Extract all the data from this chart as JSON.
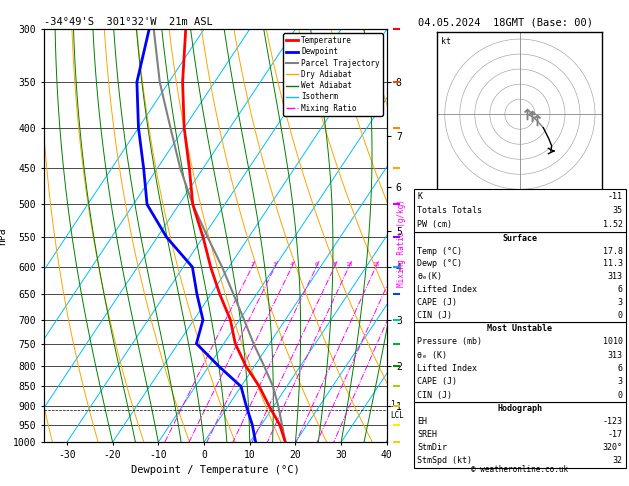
{
  "title_left": "-34°49'S  301°32'W  21m ASL",
  "title_right": "04.05.2024  18GMT (Base: 00)",
  "xlabel": "Dewpoint / Temperature (°C)",
  "ylabel_left": "hPa",
  "pressure_levels": [
    300,
    350,
    400,
    450,
    500,
    550,
    600,
    650,
    700,
    750,
    800,
    850,
    900,
    950,
    1000
  ],
  "temp_ticks": [
    -30,
    -20,
    -10,
    0,
    10,
    20,
    30,
    40
  ],
  "isotherm_color": "#00bfff",
  "dry_adiabat_color": "#ffa500",
  "wet_adiabat_color": "#008000",
  "mixing_ratio_color": "#ff00ff",
  "mixing_ratio_values": [
    2,
    3,
    4,
    6,
    8,
    10,
    15,
    20,
    25
  ],
  "temperature_profile_p": [
    1000,
    950,
    900,
    850,
    800,
    750,
    700,
    650,
    600,
    550,
    500,
    450,
    400,
    350,
    300
  ],
  "temperature_profile_t": [
    17.8,
    14.0,
    9.0,
    4.0,
    -2.0,
    -7.5,
    -12.0,
    -18.0,
    -24.0,
    -30.0,
    -37.0,
    -43.0,
    -50.0,
    -57.0,
    -64.0
  ],
  "dewpoint_profile_p": [
    1000,
    950,
    900,
    850,
    800,
    750,
    700,
    650,
    600,
    550,
    500,
    450,
    400,
    350,
    300
  ],
  "dewpoint_profile_t": [
    11.3,
    8.0,
    4.0,
    0.0,
    -8.0,
    -16.0,
    -18.0,
    -23.0,
    -28.0,
    -38.0,
    -47.0,
    -53.0,
    -60.0,
    -67.0,
    -72.0
  ],
  "parcel_profile_p": [
    1000,
    950,
    900,
    850,
    800,
    750,
    700,
    650,
    600,
    550,
    500,
    450,
    400,
    350,
    300
  ],
  "parcel_profile_t": [
    17.8,
    14.5,
    11.0,
    7.0,
    2.0,
    -3.5,
    -9.0,
    -15.0,
    -21.5,
    -29.0,
    -37.0,
    -45.0,
    -53.0,
    -62.0,
    -71.0
  ],
  "lcl_pressure": 910,
  "temp_color": "#ff0000",
  "dewpoint_color": "#0000ff",
  "parcel_color": "#808080",
  "km_labels": [
    1,
    2,
    3,
    4,
    5,
    6,
    7,
    8
  ],
  "km_pressures": [
    900,
    800,
    700,
    600,
    540,
    475,
    410,
    350
  ],
  "skew": 60.0,
  "sounding_data": {
    "K": -11,
    "Totals_Totals": 35,
    "PW_cm": 1.52,
    "Surface_Temp": 17.8,
    "Surface_Dewp": 11.3,
    "theta_e_K": 313,
    "Lifted_Index": 6,
    "CAPE_J": 3,
    "CIN_J": 0,
    "MU_Pressure_mb": 1010,
    "MU_theta_e_K": 313,
    "MU_Lifted_Index": 6,
    "MU_CAPE_J": 3,
    "MU_CIN_J": 0,
    "EH": -123,
    "SREH": -17,
    "StmDir": 320,
    "StmSpd_kt": 32
  },
  "legend_entries": [
    {
      "label": "Temperature",
      "color": "#ff0000",
      "lw": 2,
      "ls": "-"
    },
    {
      "label": "Dewpoint",
      "color": "#0000ff",
      "lw": 2,
      "ls": "-"
    },
    {
      "label": "Parcel Trajectory",
      "color": "#808080",
      "lw": 1.5,
      "ls": "-"
    },
    {
      "label": "Dry Adiabat",
      "color": "#ffa500",
      "lw": 1,
      "ls": "-"
    },
    {
      "label": "Wet Adiabat",
      "color": "#008000",
      "lw": 1,
      "ls": "-"
    },
    {
      "label": "Isotherm",
      "color": "#00bfff",
      "lw": 1,
      "ls": "-"
    },
    {
      "label": "Mixing Ratio",
      "color": "#ff00ff",
      "lw": 1,
      "ls": "-."
    }
  ]
}
